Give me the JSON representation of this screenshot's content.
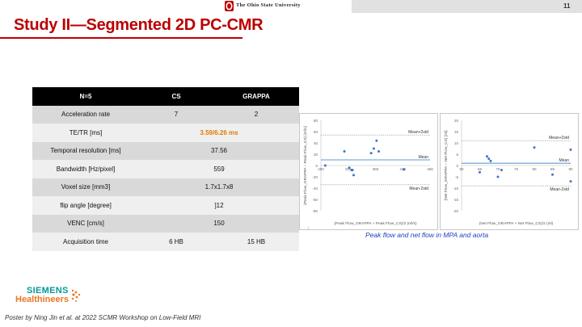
{
  "header": {
    "university": "The Ohio State University",
    "page_number": "11"
  },
  "slide": {
    "title": "Study II—Segmented 2D PC-CMR"
  },
  "table": {
    "headers": [
      "N=5",
      "CS",
      "GRAPPA"
    ],
    "rows": [
      {
        "label": "Acceleration rate",
        "cs": "7",
        "grappa": "2"
      },
      {
        "label": "TE/TR [ms]",
        "value": "3.59/6.26 ms"
      },
      {
        "label": "Temporal resolution [ms]",
        "value": "37.56"
      },
      {
        "label": "Bandwidth [Hz/pixel]",
        "value": "559"
      },
      {
        "label": "Voxel size [mm3]",
        "value": "1.7x1.7x8"
      },
      {
        "label": "flip angle [degree]",
        "value": "]12"
      },
      {
        "label": "VENC [cm/s]",
        "value": "150"
      },
      {
        "label": "Acquisition time",
        "cs": "6 HB",
        "grappa": "15 HB"
      }
    ]
  },
  "chart_data": [
    {
      "type": "scatter",
      "xlabel": "(Peak Flow_GRAPPA + Peak Flow_CS)/2 (ml/s)",
      "ylabel": "(Peak Flow_GRAPPA − Peak Flow_CS) [ml/s]",
      "xlim": [
        260,
        460
      ],
      "ylim": [
        -80,
        80
      ],
      "xticks": [
        "260",
        "310",
        "360",
        "410",
        "460"
      ],
      "yticks": [
        "80",
        "60",
        "40",
        "20",
        "0",
        "-20",
        "-40",
        "-60",
        "-80"
      ],
      "points": [
        [
          268,
          0
        ],
        [
          303,
          25
        ],
        [
          312,
          -4
        ],
        [
          316,
          -8
        ],
        [
          318,
          -8
        ],
        [
          320,
          -17
        ],
        [
          352,
          22
        ],
        [
          357,
          30
        ],
        [
          362,
          44
        ],
        [
          366,
          25
        ],
        [
          412,
          -7
        ]
      ],
      "lines": {
        "mean": 10,
        "upper": 54,
        "lower": -34
      },
      "line_labels": {
        "upper": "Mean+2std",
        "mean": "Mean",
        "lower": "Mean-2std"
      },
      "colors": {
        "points": "#4472c4",
        "mean": "#5b9bd5",
        "limits": "#7f7f7f"
      },
      "grid": false
    },
    {
      "type": "scatter",
      "xlabel": "(Net Flow_GRAPPA + Net Flow_CS)/2 (ml)",
      "ylabel": "(Net Flow_GRAPPA − Net Flow_CS) [ml]",
      "xlim": [
        60,
        90
      ],
      "ylim": [
        -20,
        20
      ],
      "xticks": [
        "60",
        "65",
        "70",
        "75",
        "80",
        "85",
        "90"
      ],
      "yticks": [
        "20",
        "15",
        "10",
        "5",
        "0",
        "-5",
        "-10",
        "-15",
        "-20"
      ],
      "points": [
        [
          65,
          -3
        ],
        [
          67,
          4
        ],
        [
          67.5,
          3
        ],
        [
          68,
          2
        ],
        [
          70,
          -5
        ],
        [
          71,
          -2
        ],
        [
          80,
          8
        ],
        [
          85,
          -4
        ],
        [
          90,
          7
        ],
        [
          90,
          -7
        ]
      ],
      "lines": {
        "mean": 1,
        "upper": 11,
        "lower": -9
      },
      "line_labels": {
        "upper": "Mean+2std",
        "mean": "Mean",
        "lower": "Mean-2std"
      },
      "colors": {
        "points": "#4472c4",
        "mean": "#5b9bd5",
        "limits": "#7f7f7f"
      },
      "grid": false
    }
  ],
  "caption": "Peak flow and net flow in MPA and aorta",
  "footer": {
    "siemens": "SIEMENS",
    "healthineers": "Healthineers",
    "note": "Poster by Ning Jin et al. at 2022 SCMR Workshop on Low-Field MRI"
  }
}
